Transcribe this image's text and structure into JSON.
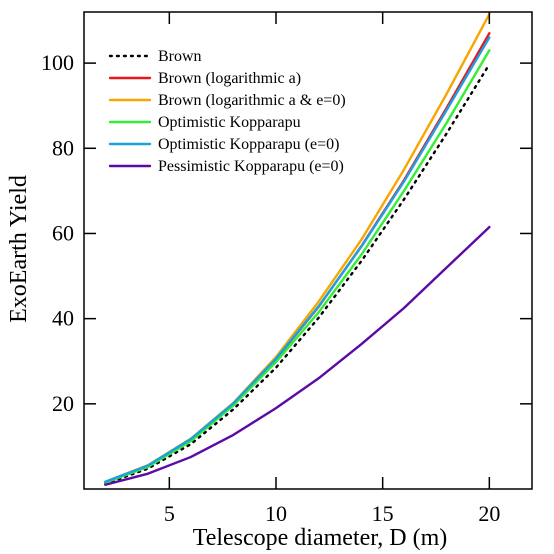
{
  "chart_data": {
    "type": "line",
    "title": "",
    "xlabel": "Telescope diameter, D (m)",
    "ylabel": "ExoEarth Yield",
    "xlim": [
      1,
      22
    ],
    "ylim": [
      0,
      112
    ],
    "xticks": [
      5,
      10,
      15,
      20
    ],
    "yticks": [
      20,
      40,
      60,
      80,
      100
    ],
    "grid": false,
    "legend": {
      "position": "top-left",
      "frameon": false
    },
    "x": [
      2,
      4,
      6,
      8,
      10,
      12,
      14,
      16,
      18,
      20
    ],
    "series": [
      {
        "name": "Brown",
        "color": "#000000",
        "style": "dotted",
        "values": [
          1.2,
          4.8,
          10.5,
          18.7,
          28.5,
          40.2,
          53.5,
          68.0,
          83.5,
          99.7
        ]
      },
      {
        "name": "Brown (logarithmic a)",
        "color": "#e8171f",
        "style": "solid",
        "values": [
          1.6,
          5.4,
          11.6,
          20.0,
          30.5,
          42.8,
          57.0,
          72.5,
          89.5,
          107.0
        ]
      },
      {
        "name": "Brown (logarithmic a & e=0)",
        "color": "#f7a600",
        "style": "solid",
        "values": [
          1.7,
          5.6,
          11.8,
          20.2,
          31.0,
          44.0,
          58.5,
          75.0,
          92.8,
          111.5
        ]
      },
      {
        "name": "Optimistic Kopparapu",
        "color": "#33ee33",
        "style": "solid",
        "values": [
          1.5,
          5.2,
          11.2,
          19.6,
          29.8,
          41.5,
          55.0,
          70.0,
          86.0,
          103.0
        ]
      },
      {
        "name": "Optimistic Kopparapu (e=0)",
        "color": "#1ba1e2",
        "style": "solid",
        "values": [
          1.7,
          5.5,
          11.7,
          20.1,
          30.6,
          42.9,
          56.9,
          72.2,
          89.0,
          106.0
        ]
      },
      {
        "name": "Pessimistic Kopparapu (e=0)",
        "color": "#5b0aa6",
        "style": "solid",
        "values": [
          1.0,
          3.6,
          7.5,
          12.7,
          19.0,
          26.0,
          34.0,
          42.5,
          52.0,
          61.5
        ]
      }
    ]
  }
}
